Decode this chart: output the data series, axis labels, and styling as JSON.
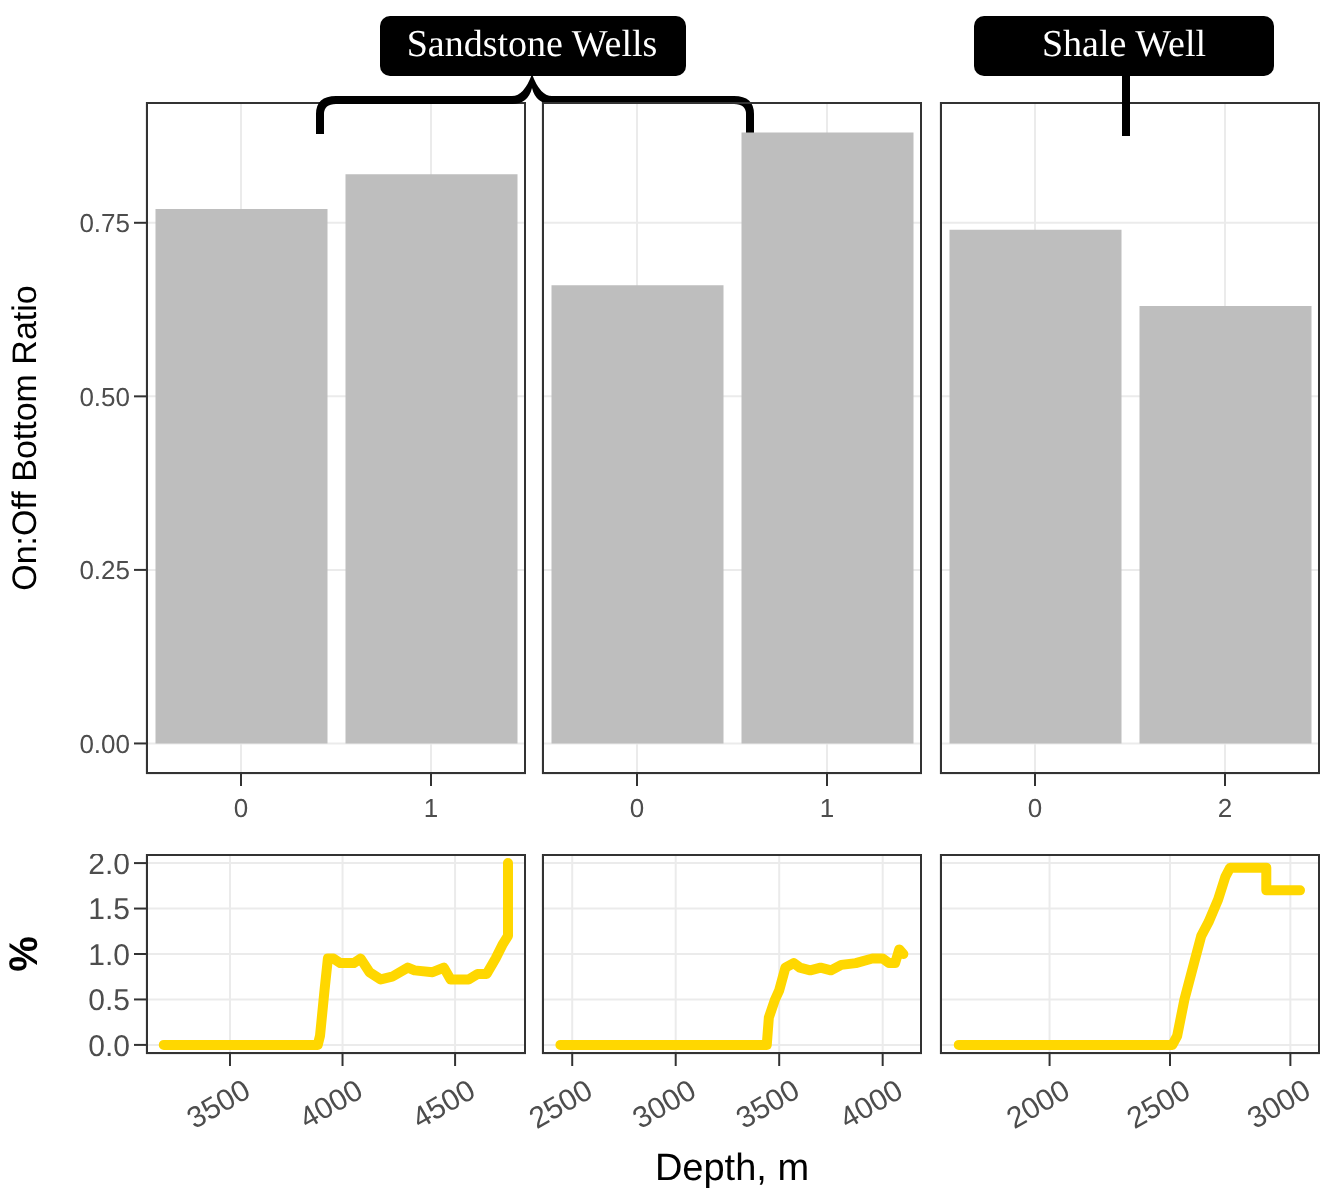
{
  "chart_data": [
    {
      "type": "bar",
      "ylabel": "On:Off Bottom Ratio",
      "annotations": [
        "Sandstone Wells"
      ],
      "categories": [
        "0",
        "1"
      ],
      "values": [
        0.77,
        0.82
      ],
      "color": "#bebebe",
      "ylim": [
        -0.044,
        0.924
      ],
      "yticks": [
        {
          "value": 0,
          "label": "0.00"
        },
        {
          "value": 0.25,
          "label": "0.25"
        },
        {
          "value": 0.5,
          "label": "0.50"
        },
        {
          "value": 0.75,
          "label": "0.75"
        }
      ],
      "grid": true
    },
    {
      "type": "bar",
      "categories": [
        "0",
        "1"
      ],
      "values": [
        0.66,
        0.88
      ],
      "color": "#bebebe",
      "ylim": [
        -0.044,
        0.924
      ],
      "yticks": [
        {
          "value": 0,
          "label": null
        },
        {
          "value": 0.25,
          "label": null
        },
        {
          "value": 0.5,
          "label": null
        },
        {
          "value": 0.75,
          "label": null
        }
      ],
      "grid": true,
      "tick_labels": "x"
    },
    {
      "type": "bar",
      "annotations": [
        "Shale Well"
      ],
      "categories": [
        "0",
        "2"
      ],
      "values": [
        0.74,
        0.63
      ],
      "color": "#bebebe",
      "ylim": [
        -0.044,
        0.924
      ],
      "yticks": [
        {
          "value": 0,
          "label": null
        },
        {
          "value": 0.25,
          "label": null
        },
        {
          "value": 0.5,
          "label": null
        },
        {
          "value": 0.75,
          "label": null
        }
      ],
      "grid": true,
      "tick_labels": "x"
    },
    {
      "type": "line",
      "ylabel": "%",
      "x": [
        3206,
        3890,
        3900,
        3920,
        3935,
        3960,
        3990,
        4050,
        4080,
        4120,
        4170,
        4220,
        4290,
        4320,
        4400,
        4450,
        4480,
        4560,
        4600,
        4640,
        4680,
        4710,
        4735,
        4735
      ],
      "values": [
        0,
        0,
        0.1,
        0.6,
        0.95,
        0.95,
        0.9,
        0.9,
        0.95,
        0.8,
        0.72,
        0.75,
        0.85,
        0.82,
        0.8,
        0.85,
        0.72,
        0.72,
        0.78,
        0.78,
        0.95,
        1.1,
        1.2,
        2.0
      ],
      "color": "#ffd700",
      "xlim": [
        3127,
        4815
      ],
      "xticks": [
        3500,
        4000,
        4500
      ],
      "ylim": [
        -0.1,
        2.1
      ],
      "yticks": [
        {
          "value": 0,
          "label": "0.0"
        },
        {
          "value": 0.5,
          "label": "0.5"
        },
        {
          "value": 1,
          "label": "1.0"
        },
        {
          "value": 1.5,
          "label": "1.5"
        },
        {
          "value": 2,
          "label": "2.0"
        }
      ],
      "grid": true,
      "marker": "none"
    },
    {
      "type": "line",
      "xlabel": "Depth, m",
      "x": [
        2443,
        3440,
        3450,
        3480,
        3500,
        3530,
        3570,
        3600,
        3650,
        3700,
        3750,
        3800,
        3870,
        3950,
        4000,
        4030,
        4060,
        4080,
        4100
      ],
      "values": [
        0,
        0,
        0.3,
        0.5,
        0.6,
        0.85,
        0.9,
        0.85,
        0.82,
        0.85,
        0.82,
        0.88,
        0.9,
        0.95,
        0.95,
        0.9,
        0.9,
        1.05,
        1.0
      ],
      "color": "#ffd700",
      "xlim": [
        2354,
        4190
      ],
      "xticks": [
        2500,
        3000,
        3500,
        4000
      ],
      "ylim": [
        -0.1,
        2.1
      ],
      "yticks": [
        {
          "value": 0,
          "label": null
        },
        {
          "value": 0.5,
          "label": null
        },
        {
          "value": 1,
          "label": null
        },
        {
          "value": 1.5,
          "label": null
        },
        {
          "value": 2,
          "label": null
        }
      ],
      "grid": true,
      "marker": "none",
      "tick_labels": "x"
    },
    {
      "type": "line",
      "x": [
        1623,
        2510,
        2530,
        2560,
        2600,
        2630,
        2660,
        2700,
        2730,
        2750,
        2900,
        2900,
        3040
      ],
      "values": [
        0,
        0,
        0.1,
        0.5,
        0.9,
        1.2,
        1.35,
        1.6,
        1.85,
        1.95,
        1.95,
        1.7,
        1.7
      ],
      "color": "#ffd700",
      "xlim": [
        1545,
        3123
      ],
      "xticks": [
        2000,
        2500,
        3000
      ],
      "ylim": [
        -0.1,
        2.1
      ],
      "yticks": [
        {
          "value": 0,
          "label": null
        },
        {
          "value": 0.5,
          "label": null
        },
        {
          "value": 1,
          "label": null
        },
        {
          "value": 1.5,
          "label": null
        },
        {
          "value": 2,
          "label": null
        }
      ],
      "grid": true,
      "marker": "none",
      "tick_labels": "x"
    }
  ]
}
